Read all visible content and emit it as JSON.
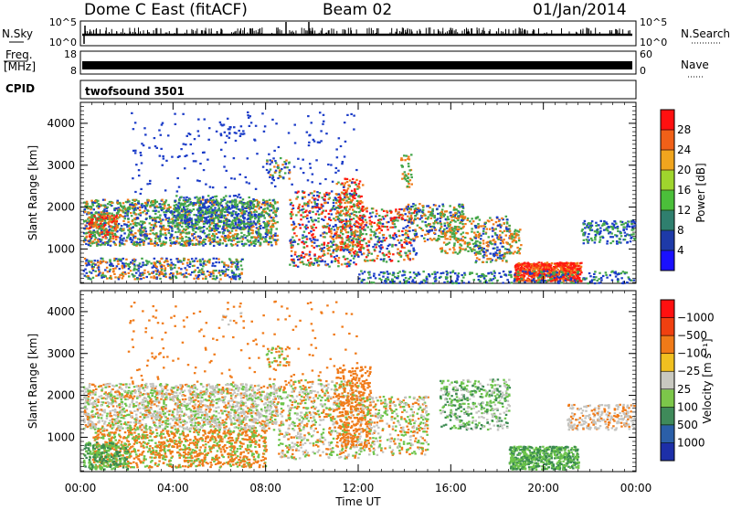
{
  "header": {
    "station": "Dome C East (fitACF)",
    "beam": "Beam 02",
    "date": "01/Jan/2014"
  },
  "strips": {
    "nsky": {
      "label": "N.Sky",
      "ticks": [
        "10^5",
        "10^0"
      ]
    },
    "nsearch": {
      "label": "N.Search",
      "ticks": [
        "10^5",
        "10^0"
      ]
    },
    "freq": {
      "label_line1": "Freq.",
      "label_line2": "[MHz]",
      "ticks": [
        "18",
        "8"
      ]
    },
    "nave": {
      "label": "Nave",
      "ticks": [
        "60",
        "0"
      ]
    },
    "cpid": {
      "label": "CPID",
      "value": "twofsound 3501"
    }
  },
  "chart_data": [
    {
      "type": "heatmap",
      "name": "power",
      "ylabel": "Slant Range [km]",
      "xlabel": "Time UT",
      "x_ticks": [
        "00:00",
        "04:00",
        "08:00",
        "12:00",
        "16:00",
        "20:00",
        "00:00"
      ],
      "y_ticks": [
        "1000",
        "2000",
        "3000",
        "4000"
      ],
      "xlim": [
        0,
        24
      ],
      "ylim": [
        180,
        4500
      ],
      "colorbar": {
        "label": "Power [dB]",
        "ticks": [
          "4",
          "8",
          "12",
          "16",
          "20",
          "24",
          "28"
        ],
        "colors": [
          "#1a10ff",
          "#1e3aa8",
          "#2f7f6e",
          "#4bbf3a",
          "#9fd52d",
          "#f0a51e",
          "#f06018",
          "#ff1010"
        ]
      }
    },
    {
      "type": "heatmap",
      "name": "velocity",
      "ylabel": "Slant Range [km]",
      "xlabel": "Time UT",
      "x_ticks": [
        "00:00",
        "04:00",
        "08:00",
        "12:00",
        "16:00",
        "20:00",
        "00:00"
      ],
      "y_ticks": [
        "1000",
        "2000",
        "3000",
        "4000"
      ],
      "xlim": [
        0,
        24
      ],
      "ylim": [
        180,
        4500
      ],
      "colorbar": {
        "label": "Velocity [m s⁻¹]",
        "ticks": [
          "1000",
          "500",
          "100",
          "25",
          "−25",
          "−100",
          "−500",
          "−1000"
        ],
        "colors": [
          "#1d2fa8",
          "#2b5fa8",
          "#3f8a5a",
          "#7cc64a",
          "#c8c8c0",
          "#f0c020",
          "#f07a18",
          "#f04010",
          "#ff1010"
        ]
      }
    }
  ],
  "x_axis": {
    "label": "Time UT"
  },
  "colors": {
    "power_blue": "#1b3cc8",
    "power_green": "#43a64a",
    "power_orange": "#f07a18",
    "power_red": "#ff1a10",
    "vel_grey": "#c4c4c0",
    "vel_green": "#6cc44a",
    "vel_orange": "#f07a18",
    "vel_darkgreen": "#3a8a50"
  }
}
